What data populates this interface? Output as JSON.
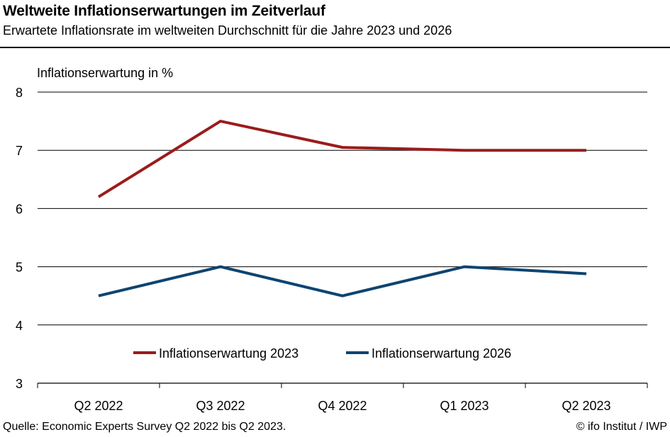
{
  "header": {
    "title": "Weltweite Inflationserwartungen im Zeitverlauf",
    "subtitle": "Erwartete Inflationsrate im weltweiten Durchschnitt für die Jahre 2023 und 2026"
  },
  "footer": {
    "source": "Quelle: Economic Experts Survey Q2 2022 bis Q2 2023.",
    "credit": "© ifo Institut / IWP"
  },
  "chart_data": {
    "type": "line",
    "title": "Weltweite Inflationserwartungen im Zeitverlauf",
    "subtitle": "Erwartete Inflationsrate im weltweiten Durchschnitt für die Jahre 2023 und 2026",
    "xlabel": "",
    "ylabel": "Inflationserwartung in %",
    "categories": [
      "Q2 2022",
      "Q3 2022",
      "Q4 2022",
      "Q1 2023",
      "Q2 2023"
    ],
    "ylim": [
      3,
      8
    ],
    "yticks": [
      3,
      4,
      5,
      6,
      7,
      8
    ],
    "grid": true,
    "legend_position": "bottom",
    "series": [
      {
        "name": "Inflationserwartung 2023",
        "color": "#9B1C1C",
        "values": [
          6.2,
          7.5,
          7.05,
          7.0,
          7.0
        ]
      },
      {
        "name": "Inflationserwartung 2026",
        "color": "#0E4470",
        "values": [
          4.5,
          5.0,
          4.5,
          5.0,
          4.88
        ]
      }
    ]
  }
}
